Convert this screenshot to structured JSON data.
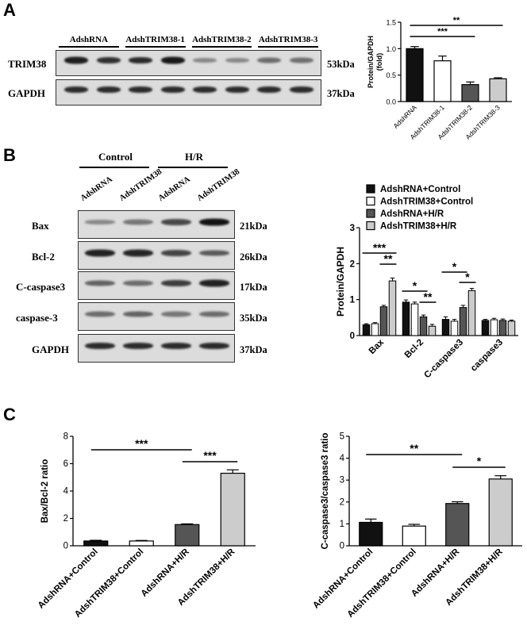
{
  "panels": {
    "a": "A",
    "b": "B",
    "c": "C"
  },
  "panelA": {
    "groups": [
      "AdshRNA",
      "AdshTRIM38-1",
      "AdshTRIM38-2",
      "AdshTRIM38-3"
    ],
    "rows": [
      {
        "label": "TRIM38",
        "kda": "53kDa",
        "bands": [
          0.92,
          0.82,
          0.85,
          0.95,
          0.35,
          0.35,
          0.5,
          0.48
        ]
      },
      {
        "label": "GAPDH",
        "kda": "37kDa",
        "bands": [
          0.85,
          0.85,
          0.85,
          0.85,
          0.85,
          0.85,
          0.85,
          0.85
        ]
      }
    ]
  },
  "panelB": {
    "groups": [
      "Control",
      "H/R"
    ],
    "lanes": [
      "AdshRNA",
      "AdshTRIM38",
      "AdshRNA",
      "AdshTRIM38"
    ],
    "rows": [
      {
        "label": "Bax",
        "kda": "21kDa",
        "bands": [
          0.35,
          0.45,
          0.7,
          0.98
        ]
      },
      {
        "label": "Bcl-2",
        "kda": "26kDa",
        "bands": [
          0.9,
          0.88,
          0.72,
          0.6
        ]
      },
      {
        "label": "C-caspase3",
        "kda": "17kDa",
        "bands": [
          0.55,
          0.5,
          0.75,
          0.9
        ]
      },
      {
        "label": "caspase-3",
        "kda": "35kDa",
        "bands": [
          0.5,
          0.55,
          0.45,
          0.5
        ]
      },
      {
        "label": "GAPDH",
        "kda": "37kDa",
        "bands": [
          0.85,
          0.85,
          0.85,
          0.85
        ]
      }
    ]
  },
  "chart_data": [
    {
      "type": "bar",
      "categories": [
        "AdshRNA",
        "AdshTRIM38-1",
        "AdshTRIM38-2",
        "AdshTRIM38-3"
      ],
      "values": [
        1.0,
        0.77,
        0.32,
        0.43
      ],
      "errors": [
        0.04,
        0.09,
        0.05,
        0.02
      ],
      "colors": [
        "#111111",
        "#ffffff",
        "#555555",
        "#cccccc"
      ],
      "ylabel": "Protein/GAPDH\n(fold)",
      "ylim": [
        0,
        1.5
      ],
      "yticks": [
        "0.0",
        "0.5",
        "1.0",
        "1.5"
      ],
      "significance": [
        {
          "from": 0,
          "to": 2,
          "label": "***"
        },
        {
          "from": 0,
          "to": 3,
          "label": "**"
        }
      ]
    },
    {
      "type": "bar",
      "categories": [
        "Bax",
        "Bcl-2",
        "C-caspase3",
        "caspase3"
      ],
      "series": [
        {
          "name": "AdshRNA+Control",
          "values": [
            0.3,
            0.93,
            0.45,
            0.42
          ],
          "errors": [
            0.03,
            0.06,
            0.07,
            0.03
          ]
        },
        {
          "name": "AdshTRIM38+Control",
          "values": [
            0.33,
            0.88,
            0.4,
            0.44
          ],
          "errors": [
            0.03,
            0.05,
            0.05,
            0.04
          ]
        },
        {
          "name": "AdshRNA+H/R",
          "values": [
            0.8,
            0.52,
            0.78,
            0.42
          ],
          "errors": [
            0.04,
            0.05,
            0.06,
            0.04
          ]
        },
        {
          "name": "AdshTRIM38+H/R",
          "values": [
            1.52,
            0.26,
            1.25,
            0.4
          ],
          "errors": [
            0.08,
            0.05,
            0.06,
            0.03
          ]
        }
      ],
      "colors": [
        "#111111",
        "#ffffff",
        "#555555",
        "#cccccc"
      ],
      "ylabel": "Protein/GAPDH",
      "ylim": [
        0,
        3
      ],
      "yticks": [
        "0",
        "1",
        "2",
        "3"
      ],
      "legend": "top-left"
    },
    {
      "type": "bar",
      "categories": [
        "AdshRNA+Control",
        "AdshTRIM38+Control",
        "AdshRNA+H/R",
        "AdshTRIM38+H/R"
      ],
      "values": [
        0.35,
        0.35,
        1.55,
        5.3
      ],
      "errors": [
        0.05,
        0.04,
        0.05,
        0.25
      ],
      "colors": [
        "#111111",
        "#ffffff",
        "#555555",
        "#cccccc"
      ],
      "ylabel": "Bax/Bcl-2 ratio",
      "ylim": [
        0,
        8
      ],
      "yticks": [
        "0",
        "2",
        "4",
        "6",
        "8"
      ],
      "significance": [
        {
          "from": 0,
          "to": 2,
          "label": "***"
        },
        {
          "from": 2,
          "to": 3,
          "label": "***"
        }
      ]
    },
    {
      "type": "bar",
      "categories": [
        "AdshRNA+Control",
        "AdshTRIM38+Control",
        "AdshRNA+H/R",
        "AdshTRIM38+H/R"
      ],
      "values": [
        1.07,
        0.9,
        1.93,
        3.05
      ],
      "errors": [
        0.15,
        0.08,
        0.08,
        0.15
      ],
      "colors": [
        "#111111",
        "#ffffff",
        "#555555",
        "#cccccc"
      ],
      "ylabel": "C-caspase3/caspase3 ratio",
      "ylim": [
        0,
        5
      ],
      "yticks": [
        "0",
        "1",
        "2",
        "3",
        "4",
        "5"
      ],
      "significance": [
        {
          "from": 0,
          "to": 2,
          "label": "**"
        },
        {
          "from": 2,
          "to": 3,
          "label": "*"
        }
      ]
    }
  ]
}
